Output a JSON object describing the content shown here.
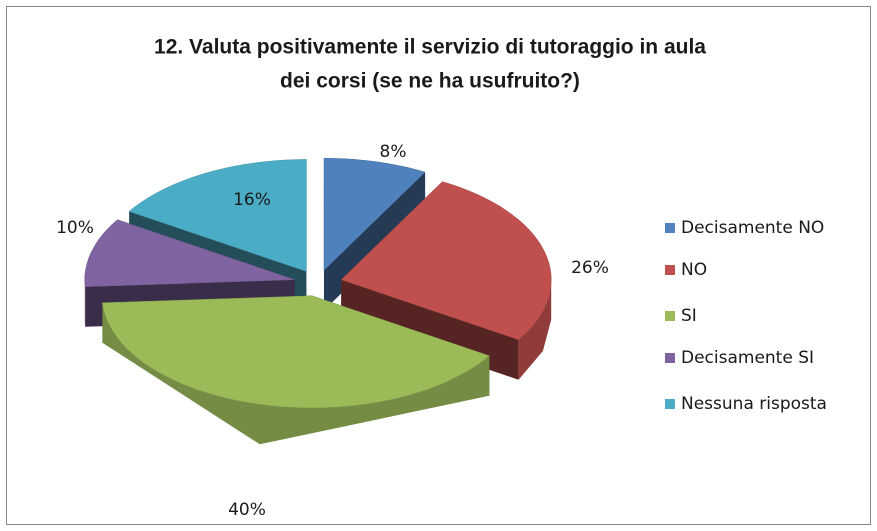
{
  "chart_data": {
    "type": "pie",
    "title": [
      "12.  Valuta positivamente il servizio di tutoraggio in aula",
      "dei corsi (se ne ha usufruito?)"
    ],
    "categories": [
      "Decisamente NO",
      "NO",
      "SI",
      "Decisamente SI",
      "Nessuna risposta"
    ],
    "values": [
      8,
      26,
      40,
      10,
      16
    ],
    "value_labels": [
      "8%",
      "26%",
      "40%",
      "10%",
      "16%"
    ],
    "colors": [
      "#4f81bd",
      "#c0504d",
      "#9bbb59",
      "#8064a2",
      "#4bacc6"
    ],
    "legend": "right"
  }
}
